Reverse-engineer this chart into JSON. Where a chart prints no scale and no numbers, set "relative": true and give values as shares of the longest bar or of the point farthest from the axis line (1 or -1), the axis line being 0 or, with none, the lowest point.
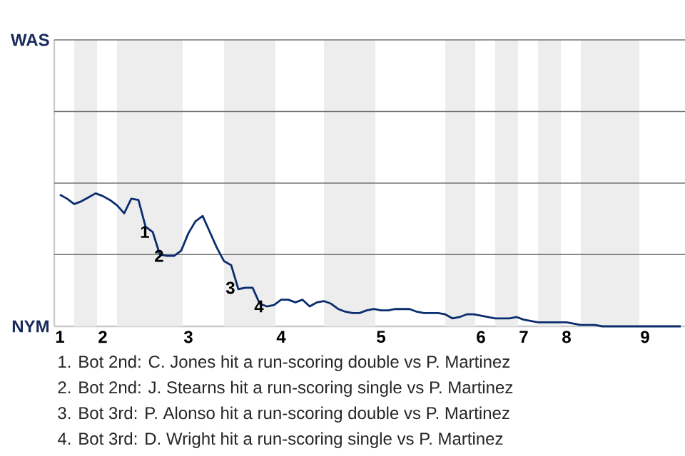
{
  "chart_data": {
    "type": "line",
    "relative": true,
    "categories": [
      "1",
      null,
      null,
      null,
      null,
      null,
      "2",
      null,
      null,
      null,
      null,
      null,
      null,
      null,
      null,
      null,
      null,
      null,
      "3",
      null,
      null,
      null,
      null,
      null,
      null,
      null,
      null,
      null,
      null,
      null,
      null,
      "4",
      null,
      null,
      null,
      null,
      null,
      null,
      null,
      null,
      null,
      null,
      null,
      null,
      null,
      "5",
      null,
      null,
      null,
      null,
      null,
      null,
      null,
      null,
      null,
      null,
      null,
      null,
      null,
      "6",
      null,
      null,
      null,
      null,
      null,
      "7",
      null,
      null,
      null,
      null,
      null,
      "8",
      null,
      null,
      null,
      null,
      null,
      null,
      null,
      null,
      null,
      null,
      "9",
      null,
      null,
      null,
      null,
      null
    ],
    "ref_lines": [
      {
        "axis": "y",
        "value": 0.54,
        "color": "#737373"
      }
    ],
    "series": [
      {
        "color": "#0b2d6e",
        "values": [
          0.99,
          0.96,
          0.92,
          0.94,
          0.97,
          1,
          0.98,
          0.95,
          0.91,
          0.85,
          0.96,
          0.95,
          0.75,
          0.71,
          0.54,
          0.53,
          0.53,
          0.57,
          0.7,
          0.79,
          0.83,
          0.71,
          0.59,
          0.49,
          0.46,
          0.28,
          0.29,
          0.29,
          0.17,
          0.15,
          0.16,
          0.2,
          0.2,
          0.18,
          0.2,
          0.15,
          0.18,
          0.19,
          0.17,
          0.13,
          0.11,
          0.1,
          0.1,
          0.12,
          0.13,
          0.12,
          0.12,
          0.13,
          0.13,
          0.13,
          0.11,
          0.1,
          0.1,
          0.1,
          0.09,
          0.06,
          0.07,
          0.09,
          0.09,
          0.08,
          0.07,
          0.06,
          0.06,
          0.06,
          0.07,
          0.05,
          0.04,
          0.03,
          0.03,
          0.03,
          0.03,
          0.03,
          0.02,
          0.01,
          0.01,
          0.01,
          0,
          0,
          0,
          0,
          0,
          0,
          0,
          0,
          0,
          0,
          0,
          0
        ]
      }
    ],
    "annotations": [
      "WAS",
      "NYM",
      {
        "text": "1",
        "y": 0.71
      },
      {
        "text": "2",
        "y": 0.53
      },
      {
        "text": "3",
        "y": 0.29
      },
      {
        "text": "4",
        "y": 0.15
      },
      "1. Bot 2nd: C. Jones hit a run-scoring double vs P. Martinez",
      "2. Bot 2nd: J. Stearns hit a run-scoring single vs P. Martinez",
      "3. Bot 3rd: P. Alonso hit a run-scoring double vs P. Martinez",
      "4. Bot 3rd: D. Wright hit a run-scoring single vs P. Martinez"
    ]
  }
}
